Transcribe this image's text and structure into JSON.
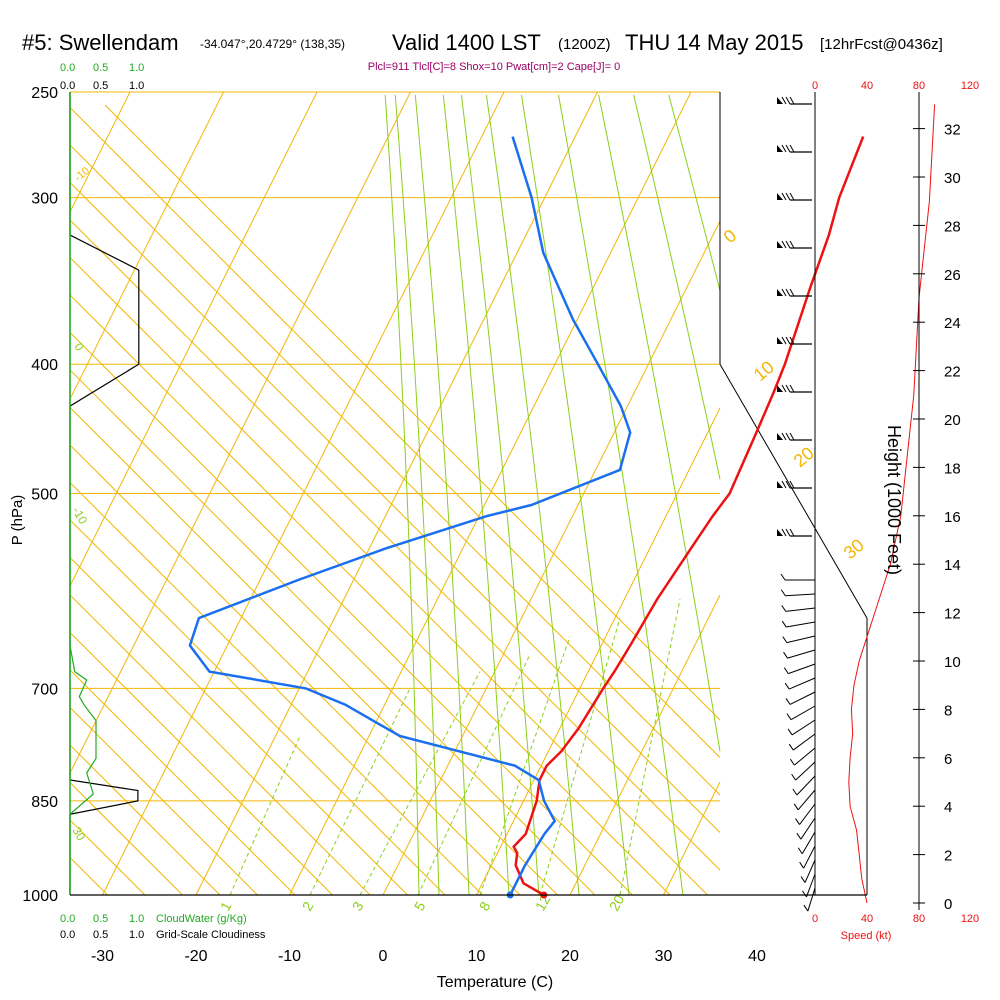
{
  "header": {
    "station": "#5: Swellendam",
    "coords": "-34.047°,20.4729° (138,35)",
    "valid": "Valid 1400 LST",
    "zulu": "(1200Z)",
    "date": "THU 14 May 2015",
    "forecast": "[12hrFcst@0436z]",
    "indices": "Plcl=911 Tlcl[C]=8 Shox=10 Pwat[cm]=2 Cape[J]= 0"
  },
  "colors": {
    "isobar": "#f2b705",
    "isotherm": "#f2b705",
    "dry_adiabat": "#f2b705",
    "moist_adiabat": "#8ccf1a",
    "mixing_ratio": "#8ccf1a",
    "temperature": "#ee1111",
    "dewpoint": "#1a6ff0",
    "cloudwater": "#22aa22",
    "cloudiness": "#000000",
    "speed": "#ee1111",
    "frame": "#000000",
    "indices_text": "#990066"
  },
  "legends": {
    "cloudwater_ticks": [
      "0.0",
      "0.5",
      "1.0"
    ],
    "cloudwater_label": "CloudWater (g/Kg)",
    "cloudiness_ticks": [
      "0.0",
      "0.5",
      "1.0"
    ],
    "cloudiness_label": "Grid-Scale Cloudiness",
    "speed_ticks": [
      "0",
      "40",
      "80",
      "120"
    ],
    "speed_label": "Speed (kt)"
  },
  "chart_data": {
    "type": "skew-t",
    "xlabel": "Temperature (C)",
    "ylabel": "P (hPa)",
    "y2label": "Height (1000 Feet)",
    "x_ticks": [
      -30,
      -20,
      -10,
      0,
      10,
      20,
      30,
      40
    ],
    "y_ticks": [
      250,
      300,
      400,
      500,
      700,
      850,
      1000
    ],
    "height_ticks": [
      0,
      2,
      4,
      6,
      8,
      10,
      12,
      14,
      16,
      18,
      20,
      22,
      24,
      26,
      28,
      30,
      32
    ],
    "dry_adiabat_labels": [
      "-10",
      "0",
      "10",
      "20",
      "30"
    ],
    "mixing_ratio_labels": [
      "1",
      "2",
      "3",
      "5",
      "8",
      "12",
      "20"
    ],
    "moist_adiabat_labels": [
      "30",
      "20",
      "10",
      "0",
      "-10"
    ],
    "series": [
      {
        "name": "Temperature",
        "points": [
          [
            1000,
            17.2
          ],
          [
            980,
            14.4
          ],
          [
            950,
            12.6
          ],
          [
            930,
            12.1
          ],
          [
            920,
            11.4
          ],
          [
            900,
            12.0
          ],
          [
            850,
            11.4
          ],
          [
            820,
            10.6
          ],
          [
            800,
            10.6
          ],
          [
            780,
            11.4
          ],
          [
            750,
            12.0
          ],
          [
            700,
            12.5
          ],
          [
            680,
            12.8
          ],
          [
            650,
            13.1
          ],
          [
            600,
            13.5
          ],
          [
            550,
            14.4
          ],
          [
            520,
            15.0
          ],
          [
            500,
            15.6
          ],
          [
            450,
            15.2
          ],
          [
            420,
            14.9
          ],
          [
            400,
            14.6
          ],
          [
            350,
            13.2
          ],
          [
            320,
            12.4
          ],
          [
            300,
            11.5
          ],
          [
            270,
            10.8
          ]
        ]
      },
      {
        "name": "Dewpoint",
        "points": [
          [
            1000,
            13.6
          ],
          [
            950,
            13.6
          ],
          [
            900,
            14.0
          ],
          [
            880,
            14.4
          ],
          [
            850,
            12.2
          ],
          [
            820,
            10.5
          ],
          [
            800,
            7.2
          ],
          [
            760,
            -6.7
          ],
          [
            720,
            -14.2
          ],
          [
            700,
            -19.3
          ],
          [
            680,
            -30.5
          ],
          [
            650,
            -34.0
          ],
          [
            620,
            -34.5
          ],
          [
            580,
            -25.8
          ],
          [
            550,
            -18.3
          ],
          [
            520,
            -9.2
          ],
          [
            510,
            -5.0
          ],
          [
            480,
            2.6
          ],
          [
            450,
            1.7
          ],
          [
            430,
            -0.7
          ],
          [
            400,
            -5.4
          ],
          [
            370,
            -10.5
          ],
          [
            330,
            -17.2
          ],
          [
            300,
            -21.4
          ],
          [
            270,
            -26.7
          ]
        ]
      }
    ],
    "height_profile_kft": [
      [
        0,
        40
      ],
      [
        1,
        36
      ],
      [
        2,
        34
      ],
      [
        3,
        32
      ],
      [
        4,
        27
      ],
      [
        5,
        26
      ],
      [
        6,
        27
      ],
      [
        7,
        29
      ],
      [
        8,
        28
      ],
      [
        9,
        30
      ],
      [
        10,
        34
      ],
      [
        11,
        40
      ],
      [
        12,
        46
      ],
      [
        13,
        52
      ],
      [
        14,
        58
      ],
      [
        15,
        62
      ],
      [
        16,
        66
      ],
      [
        17,
        68
      ],
      [
        18,
        70
      ],
      [
        19,
        72
      ],
      [
        20,
        74
      ],
      [
        21,
        76
      ],
      [
        22,
        77
      ],
      [
        23,
        78
      ],
      [
        24,
        79
      ],
      [
        25,
        80
      ],
      [
        26,
        82
      ],
      [
        27,
        84
      ],
      [
        28,
        86
      ],
      [
        29,
        88
      ],
      [
        30,
        89
      ],
      [
        31,
        90
      ],
      [
        32,
        91
      ],
      [
        33,
        92
      ]
    ],
    "cloudiness_profile": [
      [
        1000,
        0
      ],
      [
        870,
        0
      ],
      [
        850,
        0.73
      ],
      [
        835,
        0.73
      ],
      [
        820,
        0
      ],
      [
        430,
        0
      ],
      [
        400,
        0.74
      ],
      [
        340,
        0.74
      ],
      [
        320,
        0
      ],
      [
        250,
        0
      ]
    ],
    "cloudwater_profile": [
      [
        1000,
        0
      ],
      [
        870,
        0
      ],
      [
        840,
        0.25
      ],
      [
        810,
        0.18
      ],
      [
        790,
        0.28
      ],
      [
        770,
        0.28
      ],
      [
        740,
        0.28
      ],
      [
        720,
        0.15
      ],
      [
        710,
        0.1
      ],
      [
        690,
        0.18
      ],
      [
        680,
        0.05
      ],
      [
        650,
        0
      ],
      [
        250,
        0
      ]
    ]
  }
}
